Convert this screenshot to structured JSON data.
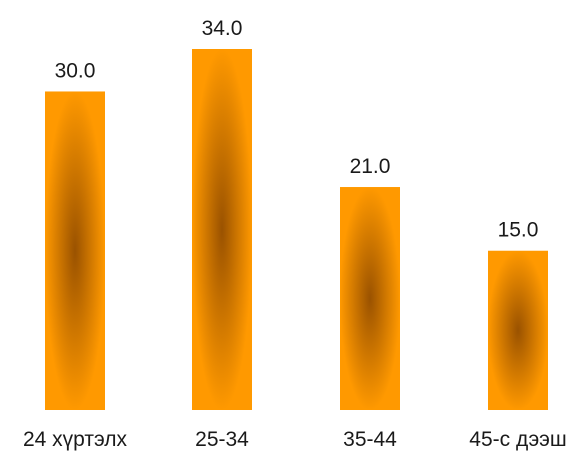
{
  "chart_data": {
    "type": "bar",
    "title": "",
    "xlabel": "",
    "ylabel": "",
    "categories": [
      "24 хүртэлх",
      "25-34",
      "35-44",
      "45-с дээш"
    ],
    "values": [
      30.0,
      34.0,
      21.0,
      15.0
    ],
    "value_labels": [
      "30.0",
      "34.0",
      "21.0",
      "15.0"
    ],
    "ylim": [
      0,
      34
    ],
    "grid": false,
    "legend": "none",
    "colors": {
      "bar_edge": "#FF9900",
      "bar_center": "#9A5200"
    }
  }
}
